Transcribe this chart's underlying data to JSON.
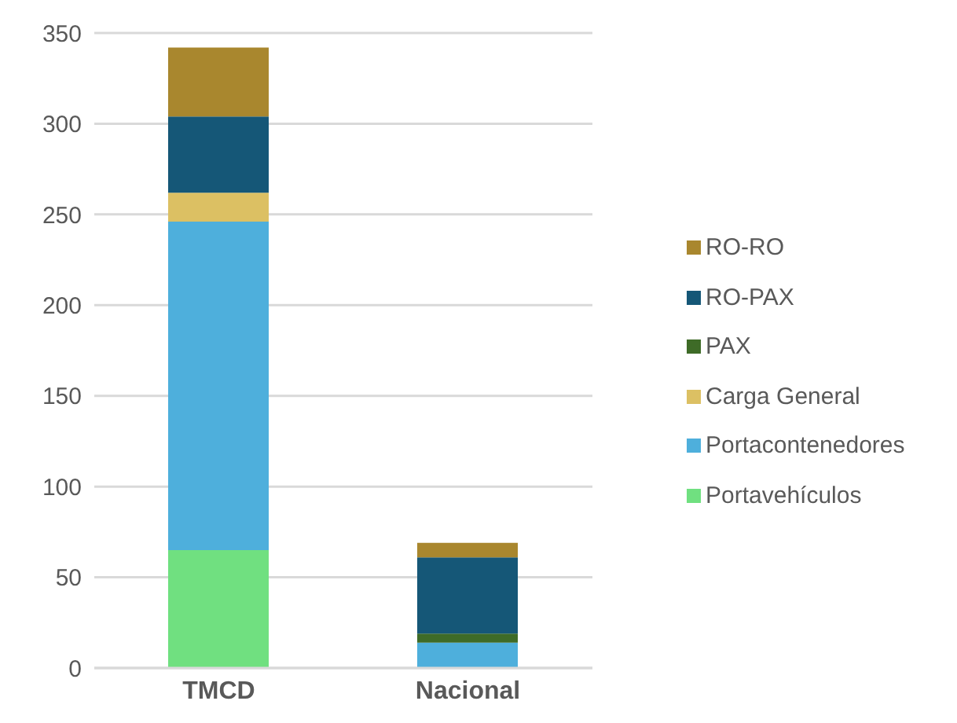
{
  "chart_data": {
    "type": "bar",
    "stacked": true,
    "categories": [
      "TMCD",
      "Nacional"
    ],
    "series": [
      {
        "name": "Portavehículos",
        "color": "#70e080",
        "values": [
          65,
          0
        ]
      },
      {
        "name": "Portacontenedores",
        "color": "#4eafdc",
        "values": [
          181,
          14
        ]
      },
      {
        "name": "Carga General",
        "color": "#dcc063",
        "values": [
          16,
          0
        ]
      },
      {
        "name": "PAX",
        "color": "#3e6b27",
        "values": [
          0,
          5
        ]
      },
      {
        "name": "RO-PAX",
        "color": "#155777",
        "values": [
          42,
          42
        ]
      },
      {
        "name": "RO-RO",
        "color": "#a9872e",
        "values": [
          38,
          8
        ]
      }
    ],
    "ylim": [
      0,
      350
    ],
    "yticks": [
      0,
      50,
      100,
      150,
      200,
      250,
      300,
      350
    ],
    "grid": "y",
    "legend": "right"
  }
}
